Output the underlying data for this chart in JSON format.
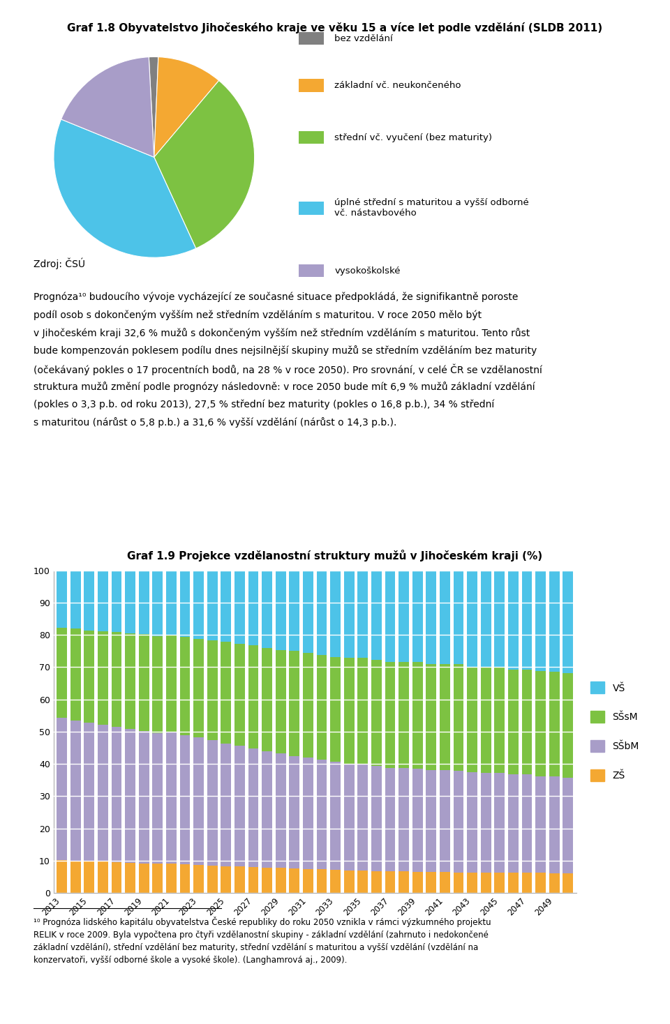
{
  "title1": "Graf 1.8 Obyvatelstvo Jihočeského kraje ve věku 15 a více let podle vzdělání (SLDB 2011)",
  "title2": "Graf 1.9 Projekce vzdělanostní struktury mužů v Jihočeském kraji (%)",
  "pie_labels": [
    "bez vzdělání",
    "základní vč. neukončeného",
    "střední vč. vyučení (bez maturity)",
    "úplné střední s maturitou a vyšší odborné\nvč. nástavbového",
    "vysokoškolské"
  ],
  "pie_sizes": [
    1.5,
    10.5,
    32.0,
    38.0,
    18.0
  ],
  "pie_colors": [
    "#808080",
    "#F4A832",
    "#7DC242",
    "#4DC3E8",
    "#A89DC8"
  ],
  "pie_startangle": 93,
  "bar_years": [
    2013,
    2014,
    2015,
    2016,
    2017,
    2018,
    2019,
    2020,
    2021,
    2022,
    2023,
    2024,
    2025,
    2026,
    2027,
    2028,
    2029,
    2030,
    2031,
    2032,
    2033,
    2034,
    2035,
    2036,
    2037,
    2038,
    2039,
    2040,
    2041,
    2042,
    2043,
    2044,
    2045,
    2046,
    2047,
    2048,
    2049,
    2050
  ],
  "ZS": [
    10.2,
    10.0,
    9.8,
    9.7,
    9.5,
    9.4,
    9.2,
    9.0,
    9.0,
    8.8,
    8.7,
    8.5,
    8.3,
    8.2,
    8.0,
    7.9,
    7.7,
    7.5,
    7.4,
    7.3,
    7.2,
    7.0,
    6.9,
    6.8,
    6.7,
    6.7,
    6.6,
    6.5,
    6.5,
    6.4,
    6.4,
    6.3,
    6.3,
    6.2,
    6.2,
    6.2,
    6.1,
    6.1
  ],
  "SSbM": [
    44.0,
    43.5,
    43.0,
    42.5,
    42.0,
    41.5,
    41.0,
    40.5,
    41.0,
    40.0,
    39.5,
    38.8,
    38.0,
    37.5,
    36.8,
    36.0,
    35.5,
    35.0,
    34.5,
    34.0,
    33.5,
    33.0,
    33.0,
    32.5,
    32.0,
    32.0,
    32.0,
    31.5,
    31.5,
    31.5,
    31.0,
    31.0,
    31.0,
    30.5,
    30.5,
    30.0,
    30.0,
    29.5
  ],
  "SSsM": [
    28.0,
    28.5,
    28.5,
    29.0,
    29.5,
    29.5,
    30.0,
    30.0,
    30.0,
    30.5,
    30.5,
    31.0,
    31.5,
    31.5,
    32.0,
    32.0,
    32.0,
    32.5,
    32.5,
    32.5,
    32.5,
    33.0,
    33.0,
    33.0,
    33.0,
    33.0,
    33.0,
    33.0,
    33.0,
    33.0,
    32.5,
    32.5,
    32.5,
    32.5,
    32.5,
    32.5,
    32.5,
    32.5
  ],
  "VS": [
    17.8,
    18.0,
    18.7,
    18.8,
    19.0,
    19.6,
    19.8,
    20.5,
    20.0,
    20.7,
    21.3,
    21.7,
    22.2,
    22.8,
    23.2,
    24.1,
    24.8,
    25.0,
    25.6,
    26.2,
    26.8,
    27.0,
    27.1,
    27.7,
    28.3,
    28.3,
    28.4,
    29.0,
    29.0,
    29.1,
    30.1,
    30.2,
    30.2,
    30.8,
    30.8,
    31.3,
    31.4,
    31.9
  ],
  "bar_colors_order": [
    "#F4A832",
    "#A89DC8",
    "#7DC242",
    "#4DC3E8"
  ],
  "bar_legend_labels": [
    "VŠ",
    "SŠsM",
    "SŠbM",
    "ZŠ"
  ],
  "bar_legend_colors": [
    "#4DC3E8",
    "#7DC242",
    "#A89DC8",
    "#F4A832"
  ],
  "footnote_text": "¹⁰ Prognóza lidského kapitálu obyvatelstva České republiky do roku 2050 vznikla v rámci výzkumného projektu\nRELIK v roce 2009. Byla vypočtena pro čtyři vzdělanostní skupiny - základní vzdělání (zahrnuto i nedokončené\nzákladní vzdělání), střední vzdělání bez maturity, střední vzdělání s maturitou a vyšší vzdělání (vzdělání na\nkonzervatoři, vyšší odborné škole a vysoké škole). (Langhamrová aj., 2009)."
}
